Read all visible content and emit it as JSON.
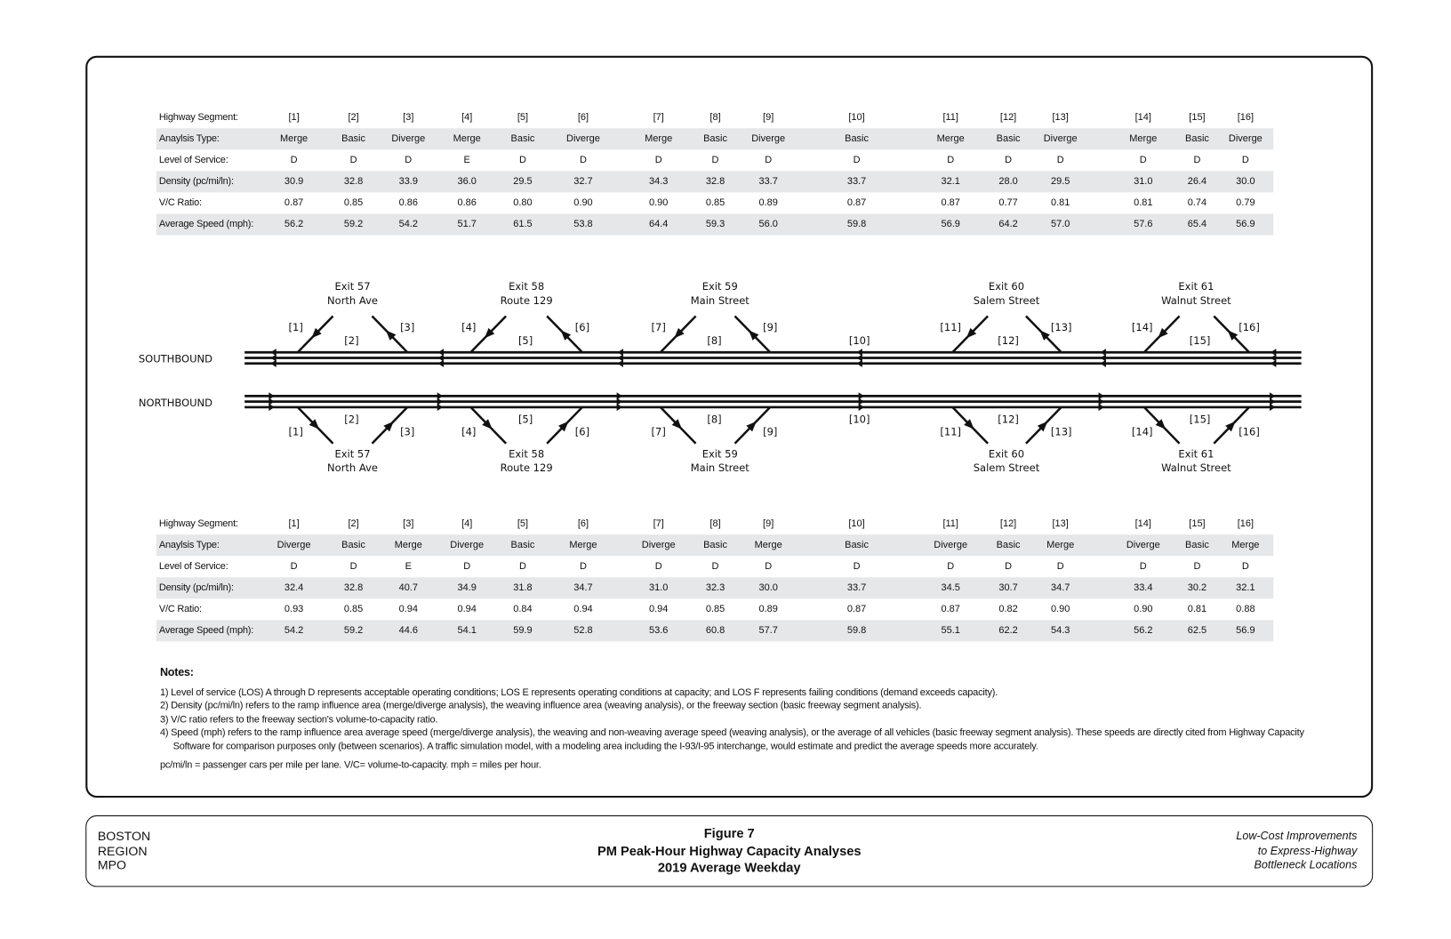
{
  "southbound_table": {
    "row_labels": [
      "Highway Segment:",
      "Anaylsis Type:",
      "Level of Service:",
      "Density (pc/mi/ln):",
      "V/C Ratio:",
      "Average Speed (mph):"
    ],
    "segments": [
      "[1]",
      "[2]",
      "[3]",
      "[4]",
      "[5]",
      "[6]",
      "[7]",
      "[8]",
      "[9]",
      "[10]",
      "[11]",
      "[12]",
      "[13]",
      "[14]",
      "[15]",
      "[16]"
    ],
    "analysis_type": [
      "Merge",
      "Basic",
      "Diverge",
      "Merge",
      "Basic",
      "Diverge",
      "Merge",
      "Basic",
      "Diverge",
      "Basic",
      "Merge",
      "Basic",
      "Diverge",
      "Merge",
      "Basic",
      "Diverge"
    ],
    "level_of_service": [
      "D",
      "D",
      "D",
      "E",
      "D",
      "D",
      "D",
      "D",
      "D",
      "D",
      "D",
      "D",
      "D",
      "D",
      "D",
      "D"
    ],
    "density": [
      "30.9",
      "32.8",
      "33.9",
      "36.0",
      "29.5",
      "32.7",
      "34.3",
      "32.8",
      "33.7",
      "33.7",
      "32.1",
      "28.0",
      "29.5",
      "31.0",
      "26.4",
      "30.0"
    ],
    "vc_ratio": [
      "0.87",
      "0.85",
      "0.86",
      "0.86",
      "0.80",
      "0.90",
      "0.90",
      "0.85",
      "0.89",
      "0.87",
      "0.87",
      "0.77",
      "0.81",
      "0.81",
      "0.74",
      "0.79"
    ],
    "avg_speed": [
      "56.2",
      "59.2",
      "54.2",
      "51.7",
      "61.5",
      "53.8",
      "64.4",
      "59.3",
      "56.0",
      "59.8",
      "56.9",
      "64.2",
      "57.0",
      "57.6",
      "65.4",
      "56.9"
    ]
  },
  "northbound_table": {
    "row_labels": [
      "Highway Segment:",
      "Anaylsis Type:",
      "Level of Service:",
      "Density (pc/mi/ln):",
      "V/C Ratio:",
      "Average Speed (mph):"
    ],
    "segments": [
      "[1]",
      "[2]",
      "[3]",
      "[4]",
      "[5]",
      "[6]",
      "[7]",
      "[8]",
      "[9]",
      "[10]",
      "[11]",
      "[12]",
      "[13]",
      "[14]",
      "[15]",
      "[16]"
    ],
    "analysis_type": [
      "Diverge",
      "Basic",
      "Merge",
      "Diverge",
      "Basic",
      "Merge",
      "Diverge",
      "Basic",
      "Merge",
      "Basic",
      "Diverge",
      "Basic",
      "Merge",
      "Diverge",
      "Basic",
      "Merge"
    ],
    "level_of_service": [
      "D",
      "D",
      "E",
      "D",
      "D",
      "D",
      "D",
      "D",
      "D",
      "D",
      "D",
      "D",
      "D",
      "D",
      "D",
      "D"
    ],
    "density": [
      "32.4",
      "32.8",
      "40.7",
      "34.9",
      "31.8",
      "34.7",
      "31.0",
      "32.3",
      "30.0",
      "33.7",
      "34.5",
      "30.7",
      "34.7",
      "33.4",
      "30.2",
      "32.1"
    ],
    "vc_ratio": [
      "0.93",
      "0.85",
      "0.94",
      "0.94",
      "0.84",
      "0.94",
      "0.94",
      "0.85",
      "0.89",
      "0.87",
      "0.87",
      "0.82",
      "0.90",
      "0.90",
      "0.81",
      "0.88"
    ],
    "avg_speed": [
      "54.2",
      "59.2",
      "44.6",
      "54.1",
      "59.9",
      "52.8",
      "53.6",
      "60.8",
      "57.7",
      "59.8",
      "55.1",
      "62.2",
      "54.3",
      "56.2",
      "62.5",
      "56.9"
    ]
  },
  "diagram": {
    "southbound_label": "SOUTHBOUND",
    "northbound_label": "NORTHBOUND",
    "exits": [
      {
        "number": "Exit 57",
        "name": "North Ave"
      },
      {
        "number": "Exit 58",
        "name": "Route 129"
      },
      {
        "number": "Exit 59",
        "name": "Main Street"
      },
      {
        "number": "Exit 60",
        "name": "Salem Street"
      },
      {
        "number": "Exit 61",
        "name": "Walnut Street"
      }
    ],
    "segment_labels": [
      "[1]",
      "[2]",
      "[3]",
      "[4]",
      "[5]",
      "[6]",
      "[7]",
      "[8]",
      "[9]",
      "[10]",
      "[11]",
      "[12]",
      "[13]",
      "[14]",
      "[15]",
      "[16]"
    ]
  },
  "notes": {
    "title": "Notes:",
    "items": [
      "1)  Level of service (LOS) A through D represents acceptable operating conditions; LOS E represents operating conditions at capacity; and LOS F represents failing conditions (demand exceeds capacity).",
      "2)  Density (pc/mi/ln) refers to the ramp influence area (merge/diverge analysis), the weaving influence area (weaving analysis), or the freeway section (basic freeway segment analysis).",
      "3)  V/C ratio refers to the freeway section's volume-to-capacity ratio.",
      "4)  Speed (mph) refers to the ramp influence area average speed (merge/diverge analysis), the weaving and non-weaving average speed (weaving analysis), or the average of all vehicles (basic freeway segment analysis). These speeds are directly cited from Highway Capacity Software for comparison purposes only (between scenarios). A traffic simulation model, with a modeling area including the I-93/I-95 interchange, would estimate and predict the average speeds more accurately."
    ],
    "abbreviations": "pc/mi/ln = passenger cars per mile per lane.  V/C= volume-to-capacity.  mph = miles per hour."
  },
  "footer": {
    "org": [
      "BOSTON",
      "REGION",
      "MPO"
    ],
    "figure": "Figure 7",
    "title": "PM Peak-Hour Highway Capacity Analyses",
    "subtitle": "2019 Average Weekday",
    "project": [
      "Low-Cost Improvements",
      "to Express-Highway",
      "Bottleneck Locations"
    ]
  }
}
